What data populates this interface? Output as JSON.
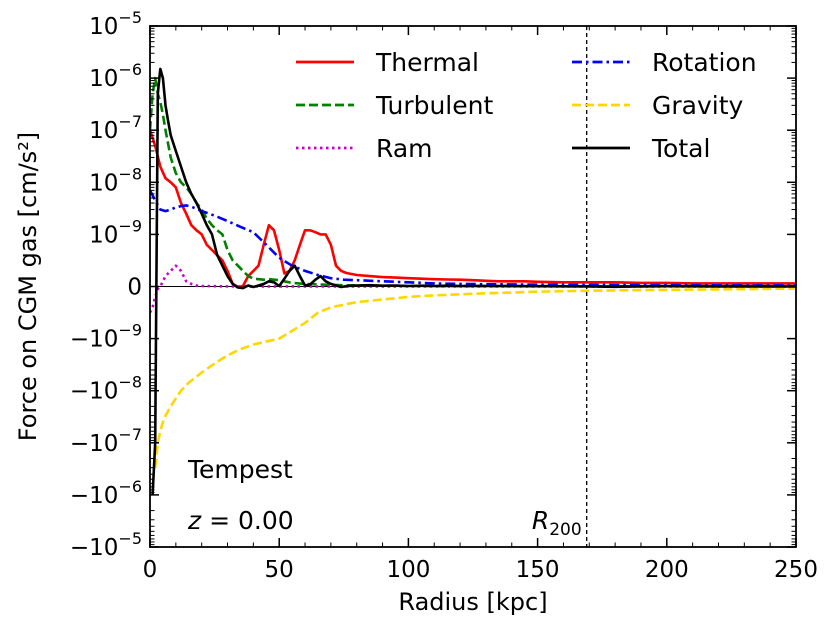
{
  "chart_data": {
    "type": "line",
    "title": "",
    "xlabel": "Radius [kpc]",
    "ylabel": "Force on CGM gas [cm/s²]",
    "xlim": [
      0,
      250
    ],
    "y_scale": "symlog",
    "linthresh": 1e-09,
    "ylim": [
      -1e-05,
      1e-05
    ],
    "x_ticks": [
      0,
      50,
      100,
      150,
      200,
      250
    ],
    "y_ticks": [
      {
        "value": 1e-05,
        "base": "10",
        "exp": "−5"
      },
      {
        "value": 1e-06,
        "base": "10",
        "exp": "−6"
      },
      {
        "value": 1e-07,
        "base": "10",
        "exp": "−7"
      },
      {
        "value": 1e-08,
        "base": "10",
        "exp": "−8"
      },
      {
        "value": 1e-09,
        "base": "10",
        "exp": "−9"
      },
      {
        "value": 0,
        "base": "0",
        "exp": ""
      },
      {
        "value": -1e-09,
        "base": "−10",
        "exp": "−9"
      },
      {
        "value": -1e-08,
        "base": "−10",
        "exp": "−8"
      },
      {
        "value": -1e-07,
        "base": "−10",
        "exp": "−7"
      },
      {
        "value": -1e-06,
        "base": "−10",
        "exp": "−6"
      },
      {
        "value": -1e-05,
        "base": "−10",
        "exp": "−5"
      }
    ],
    "annotations": {
      "name": "Tempest",
      "redshift_symbol": "z",
      "redshift_text": " = 0.00",
      "r200_symbol": "R",
      "r200_sub": "200",
      "r200_x": 169
    },
    "legend": {
      "position": "upper-right",
      "columns": 2
    },
    "series": [
      {
        "name": "Thermal",
        "color": "#ff0000",
        "dash": "solid",
        "x": [
          0,
          2,
          4,
          6,
          8,
          10,
          12,
          14,
          16,
          18,
          20,
          22,
          24,
          26,
          28,
          30,
          32,
          34,
          36,
          38,
          40,
          42,
          44,
          46,
          48,
          50,
          52,
          54,
          56,
          58,
          60,
          62,
          64,
          66,
          68,
          70,
          72,
          74,
          76,
          78,
          80,
          85,
          90,
          95,
          100,
          105,
          110,
          115,
          120,
          125,
          130,
          135,
          140,
          145,
          150,
          155,
          160,
          165,
          170,
          175,
          180,
          190,
          200,
          210,
          220,
          230,
          240,
          250
        ],
        "y": [
          1e-07,
          5e-08,
          2e-08,
          1.2e-08,
          1e-08,
          8e-09,
          4e-09,
          2.5e-09,
          1.5e-09,
          1.2e-09,
          1e-09,
          8e-10,
          7e-10,
          6e-10,
          5e-10,
          3e-10,
          5e-11,
          -1e-11,
          1e-11,
          2e-10,
          3e-10,
          4e-10,
          8e-10,
          1.5e-09,
          1.2e-09,
          7e-10,
          2.5e-10,
          3e-10,
          5e-10,
          8e-10,
          1.2e-09,
          1.2e-09,
          1.1e-09,
          1e-09,
          1e-09,
          8e-10,
          4e-10,
          3e-10,
          2.6e-10,
          2.4e-10,
          2.2e-10,
          2e-10,
          1.8e-10,
          1.7e-10,
          1.6e-10,
          1.5e-10,
          1.4e-10,
          1.35e-10,
          1.3e-10,
          1.2e-10,
          1.1e-10,
          1e-10,
          1e-10,
          1e-10,
          9e-11,
          8.5e-11,
          8e-11,
          8e-11,
          8e-11,
          8e-11,
          8e-11,
          7e-11,
          7e-11,
          6e-11,
          6e-11,
          6e-11,
          6e-11,
          6e-11
        ]
      },
      {
        "name": "Turbulent",
        "color": "#008000",
        "dash": "dashed",
        "x": [
          0,
          1,
          2,
          3,
          4,
          5,
          6,
          8,
          10,
          12,
          14,
          16,
          18,
          20,
          22,
          24,
          26,
          28,
          30,
          32,
          34,
          36,
          38,
          40,
          42,
          44,
          46,
          48,
          50,
          52,
          55,
          60,
          65,
          70,
          75,
          80,
          90,
          100,
          110,
          120,
          130,
          140,
          150,
          160,
          170,
          180,
          190,
          200,
          210,
          220,
          230,
          240,
          250
        ],
        "y": [
          1e-07,
          5e-07,
          1e-06,
          5e-07,
          3.5e-07,
          2e-07,
          1e-07,
          3e-08,
          1.5e-08,
          1e-08,
          8e-09,
          6e-09,
          4e-09,
          3e-09,
          2e-09,
          1.5e-09,
          1.2e-09,
          1e-09,
          7e-10,
          5e-10,
          4e-10,
          3e-10,
          2e-10,
          1.5e-10,
          1.4e-10,
          1.3e-10,
          1.4e-10,
          1.3e-10,
          1.2e-10,
          1e-10,
          7e-11,
          5e-11,
          4e-11,
          3e-11,
          2.5e-11,
          2e-11,
          1.5e-11,
          1e-11,
          1e-11,
          8e-12,
          8e-12,
          8e-12,
          5e-12,
          5e-12,
          5e-12,
          5e-12,
          5e-12,
          5e-12,
          5e-12,
          5e-12,
          5e-12,
          5e-12,
          5e-12
        ]
      },
      {
        "name": "Ram",
        "color": "#cc00cc",
        "dash": "dotted",
        "x": [
          0,
          1,
          2,
          3,
          4,
          5,
          6,
          8,
          10,
          12,
          14,
          16,
          18,
          20,
          25,
          30,
          40,
          50,
          60,
          80,
          100,
          150,
          200,
          250
        ],
        "y": [
          -5e-10,
          -4e-10,
          -2e-10,
          -5e-11,
          0,
          1e-10,
          2e-10,
          3e-10,
          4e-10,
          3e-10,
          1e-10,
          5e-11,
          2e-11,
          1e-11,
          5e-12,
          2e-12,
          1e-12,
          1e-12,
          0,
          0,
          0,
          0,
          0,
          0
        ]
      },
      {
        "name": "Rotation",
        "color": "#0000ff",
        "dash": "dashdot",
        "x": [
          0,
          2,
          4,
          6,
          8,
          10,
          12,
          14,
          16,
          18,
          20,
          25,
          30,
          35,
          40,
          45,
          50,
          55,
          60,
          65,
          70,
          75,
          80,
          90,
          100,
          110,
          120,
          130,
          140,
          150,
          160,
          170,
          180,
          190,
          200,
          210,
          220,
          230,
          240,
          250
        ],
        "y": [
          7e-09,
          4.5e-09,
          3e-09,
          2.8e-09,
          3e-09,
          3.3e-09,
          3.5e-09,
          3.6e-09,
          3.4e-09,
          3.1e-09,
          2.8e-09,
          2.3e-09,
          1.8e-09,
          1.4e-09,
          1.1e-09,
          8e-10,
          5.5e-10,
          4e-10,
          3e-10,
          2.2e-10,
          1.6e-10,
          1.3e-10,
          1.2e-10,
          1e-10,
          8e-11,
          6e-11,
          5e-11,
          4.5e-11,
          4e-11,
          3.5e-11,
          3e-11,
          3e-11,
          2.8e-11,
          2.6e-11,
          2.5e-11,
          2.4e-11,
          2.3e-11,
          2.2e-11,
          2.1e-11,
          2e-11
        ]
      },
      {
        "name": "Gravity",
        "color": "#ffd700",
        "dash": "dashed",
        "x": [
          2,
          3,
          4,
          5,
          6,
          8,
          10,
          12,
          15,
          20,
          25,
          30,
          35,
          40,
          50,
          60,
          65,
          70,
          80,
          90,
          100,
          110,
          120,
          130,
          140,
          150,
          160,
          170,
          180,
          190,
          200,
          210,
          220,
          230,
          240,
          250
        ],
        "y": [
          -3e-07,
          -1e-07,
          -6e-08,
          -4e-08,
          -3e-08,
          -2e-08,
          -1.4e-08,
          -1e-08,
          -7e-09,
          -4.5e-09,
          -3e-09,
          -2.1e-09,
          -1.6e-09,
          -1.3e-09,
          -1e-09,
          -7e-10,
          -5e-10,
          -4e-10,
          -3e-10,
          -2.5e-10,
          -2e-10,
          -1.7e-10,
          -1.5e-10,
          -1.3e-10,
          -1.15e-10,
          -1e-10,
          -9e-11,
          -8e-11,
          -7.5e-11,
          -7e-11,
          -6.5e-11,
          -6e-11,
          -5.5e-11,
          -5e-11,
          -4.5e-11,
          -4e-11
        ]
      },
      {
        "name": "Total",
        "color": "#000000",
        "dash": "solid",
        "x": [
          1,
          2,
          3,
          4,
          5,
          6,
          7,
          8,
          10,
          12,
          14,
          16,
          18,
          20,
          22,
          24,
          26,
          28,
          30,
          32,
          34,
          36,
          38,
          40,
          42,
          44,
          46,
          48,
          50,
          52,
          54,
          56,
          58,
          60,
          62,
          64,
          66,
          68,
          70,
          72,
          74,
          76,
          78,
          80,
          85,
          90,
          95,
          100,
          105,
          110,
          115,
          120,
          125,
          130,
          140,
          150,
          160,
          170,
          180,
          190,
          200,
          210,
          220,
          230,
          240,
          250
        ],
        "y": [
          -1e-06,
          -1e-07,
          5e-07,
          1.5e-06,
          1e-06,
          3e-07,
          1.5e-07,
          8e-08,
          4e-08,
          2e-08,
          1e-08,
          6e-09,
          4e-09,
          2.5e-09,
          1.5e-09,
          1e-09,
          6e-10,
          4e-10,
          2e-10,
          5e-11,
          -2e-11,
          -3e-11,
          2e-11,
          -1e-11,
          2e-11,
          5e-11,
          1e-10,
          8e-11,
          1e-11,
          1.5e-10,
          3e-10,
          4e-10,
          2e-10,
          2e-11,
          4e-11,
          1.3e-10,
          2e-10,
          1e-10,
          5e-11,
          2e-11,
          -1e-11,
          5e-12,
          1.5e-11,
          2e-11,
          2.5e-11,
          1.5e-11,
          2e-11,
          1e-11,
          1.5e-11,
          1e-11,
          1.5e-11,
          1e-11,
          1.2e-11,
          1e-11,
          8e-12,
          5e-12,
          3e-12,
          2e-12,
          -5e-12,
          2e-12,
          5e-12,
          3e-12,
          2e-12,
          2e-12,
          1e-12,
          1e-12
        ]
      }
    ]
  }
}
